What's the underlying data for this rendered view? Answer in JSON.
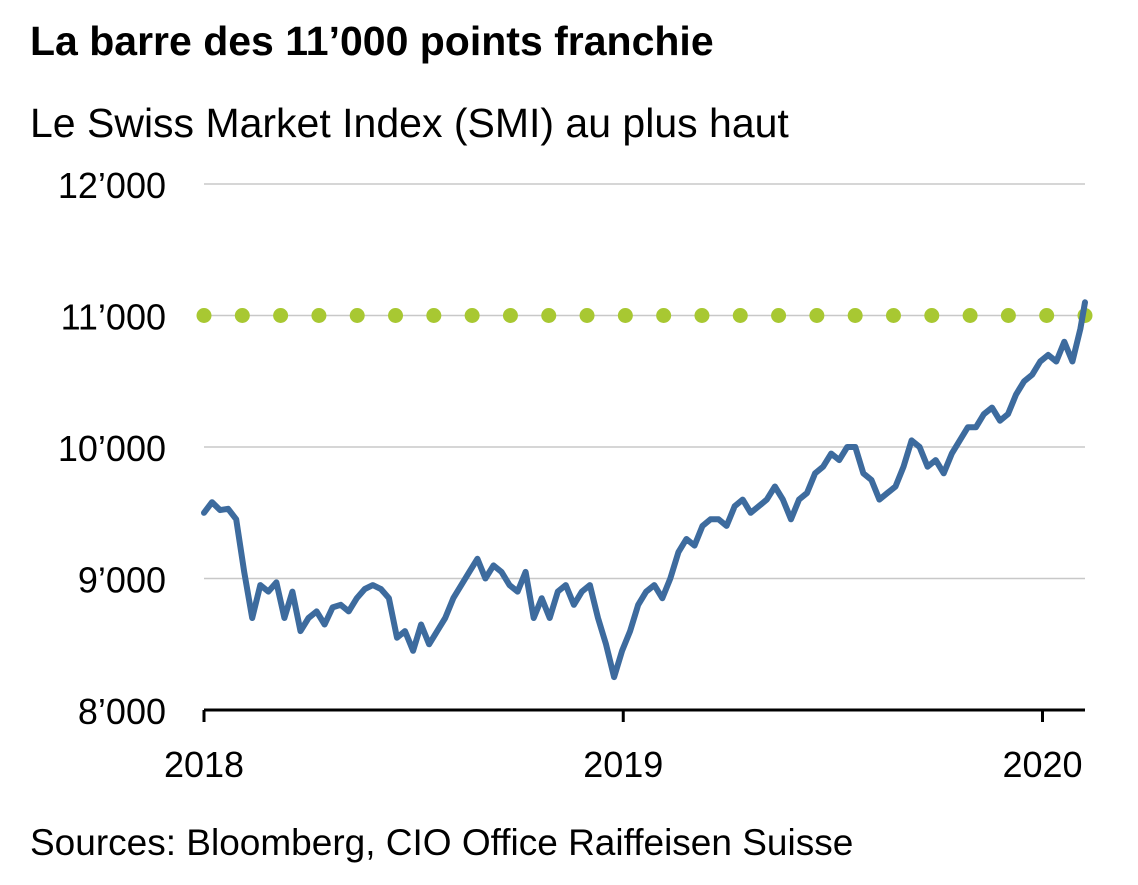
{
  "title": "La barre des 11’000 points franchie",
  "subtitle": "Le Swiss Market Index (SMI) au plus haut",
  "source": "Sources: Bloomberg, CIO Office Raiffeisen Suisse",
  "colors": {
    "series": "#3d6b9e",
    "threshold": "#a8c832",
    "grid": "#c8c8c8",
    "axis": "#000000"
  },
  "chart_data": {
    "type": "line",
    "title": "La barre des 11’000 points franchie",
    "subtitle": "Le Swiss Market Index (SMI) au plus haut",
    "xlabel": "",
    "ylabel": "",
    "ylim": [
      8000,
      12000
    ],
    "xlim": [
      "2018-01-01",
      "2020-02-07"
    ],
    "y_ticks": [
      {
        "value": 8000,
        "label": "8’000"
      },
      {
        "value": 9000,
        "label": "9’000"
      },
      {
        "value": 10000,
        "label": "10’000"
      },
      {
        "value": 11000,
        "label": "11’000"
      },
      {
        "value": 12000,
        "label": "12’000"
      }
    ],
    "x_ticks": [
      {
        "value": "2018-01-01",
        "label": "2018"
      },
      {
        "value": "2019-01-01",
        "label": "2019"
      },
      {
        "value": "2020-01-01",
        "label": "2020"
      }
    ],
    "grid": true,
    "reference_line": {
      "value": 11000,
      "style": "dotted"
    },
    "series": [
      {
        "name": "SMI",
        "x": [
          "2018-01-01",
          "2018-01-08",
          "2018-01-15",
          "2018-01-22",
          "2018-01-29",
          "2018-02-05",
          "2018-02-12",
          "2018-02-19",
          "2018-02-26",
          "2018-03-05",
          "2018-03-12",
          "2018-03-19",
          "2018-03-26",
          "2018-04-02",
          "2018-04-09",
          "2018-04-16",
          "2018-04-23",
          "2018-04-30",
          "2018-05-07",
          "2018-05-14",
          "2018-05-21",
          "2018-05-28",
          "2018-06-04",
          "2018-06-11",
          "2018-06-18",
          "2018-06-25",
          "2018-07-02",
          "2018-07-09",
          "2018-07-16",
          "2018-07-23",
          "2018-07-30",
          "2018-08-06",
          "2018-08-13",
          "2018-08-20",
          "2018-08-27",
          "2018-09-03",
          "2018-09-10",
          "2018-09-17",
          "2018-09-24",
          "2018-10-01",
          "2018-10-08",
          "2018-10-15",
          "2018-10-22",
          "2018-10-29",
          "2018-11-05",
          "2018-11-12",
          "2018-11-19",
          "2018-11-26",
          "2018-12-03",
          "2018-12-10",
          "2018-12-17",
          "2018-12-24",
          "2018-12-31",
          "2019-01-07",
          "2019-01-14",
          "2019-01-21",
          "2019-01-28",
          "2019-02-04",
          "2019-02-11",
          "2019-02-18",
          "2019-02-25",
          "2019-03-04",
          "2019-03-11",
          "2019-03-18",
          "2019-03-25",
          "2019-04-01",
          "2019-04-08",
          "2019-04-15",
          "2019-04-22",
          "2019-04-29",
          "2019-05-06",
          "2019-05-13",
          "2019-05-20",
          "2019-05-27",
          "2019-06-03",
          "2019-06-10",
          "2019-06-17",
          "2019-06-24",
          "2019-07-01",
          "2019-07-08",
          "2019-07-15",
          "2019-07-22",
          "2019-07-29",
          "2019-08-05",
          "2019-08-12",
          "2019-08-19",
          "2019-08-26",
          "2019-09-02",
          "2019-09-09",
          "2019-09-16",
          "2019-09-23",
          "2019-09-30",
          "2019-10-07",
          "2019-10-14",
          "2019-10-21",
          "2019-10-28",
          "2019-11-04",
          "2019-11-11",
          "2019-11-18",
          "2019-11-25",
          "2019-12-02",
          "2019-12-09",
          "2019-12-16",
          "2019-12-23",
          "2019-12-30",
          "2020-01-06",
          "2020-01-13",
          "2020-01-20",
          "2020-01-27",
          "2020-02-03",
          "2020-02-07"
        ],
        "values": [
          9500,
          9580,
          9520,
          9530,
          9450,
          9050,
          8700,
          8950,
          8900,
          8970,
          8700,
          8900,
          8600,
          8700,
          8750,
          8650,
          8780,
          8800,
          8750,
          8850,
          8920,
          8950,
          8920,
          8850,
          8550,
          8600,
          8450,
          8650,
          8500,
          8600,
          8700,
          8850,
          8950,
          9050,
          9150,
          9000,
          9100,
          9050,
          8950,
          8900,
          9050,
          8700,
          8850,
          8700,
          8900,
          8950,
          8800,
          8900,
          8950,
          8700,
          8500,
          8250,
          8450,
          8600,
          8800,
          8900,
          8950,
          8850,
          9000,
          9200,
          9300,
          9250,
          9400,
          9450,
          9450,
          9400,
          9550,
          9600,
          9500,
          9550,
          9600,
          9700,
          9600,
          9450,
          9600,
          9650,
          9800,
          9850,
          9950,
          9900,
          10000,
          10000,
          9800,
          9750,
          9600,
          9650,
          9700,
          9850,
          10050,
          10000,
          9850,
          9900,
          9800,
          9950,
          10050,
          10150,
          10150,
          10250,
          10300,
          10200,
          10250,
          10400,
          10500,
          10550,
          10650,
          10700,
          10650,
          10800,
          10650,
          10900,
          11100
        ]
      }
    ]
  }
}
